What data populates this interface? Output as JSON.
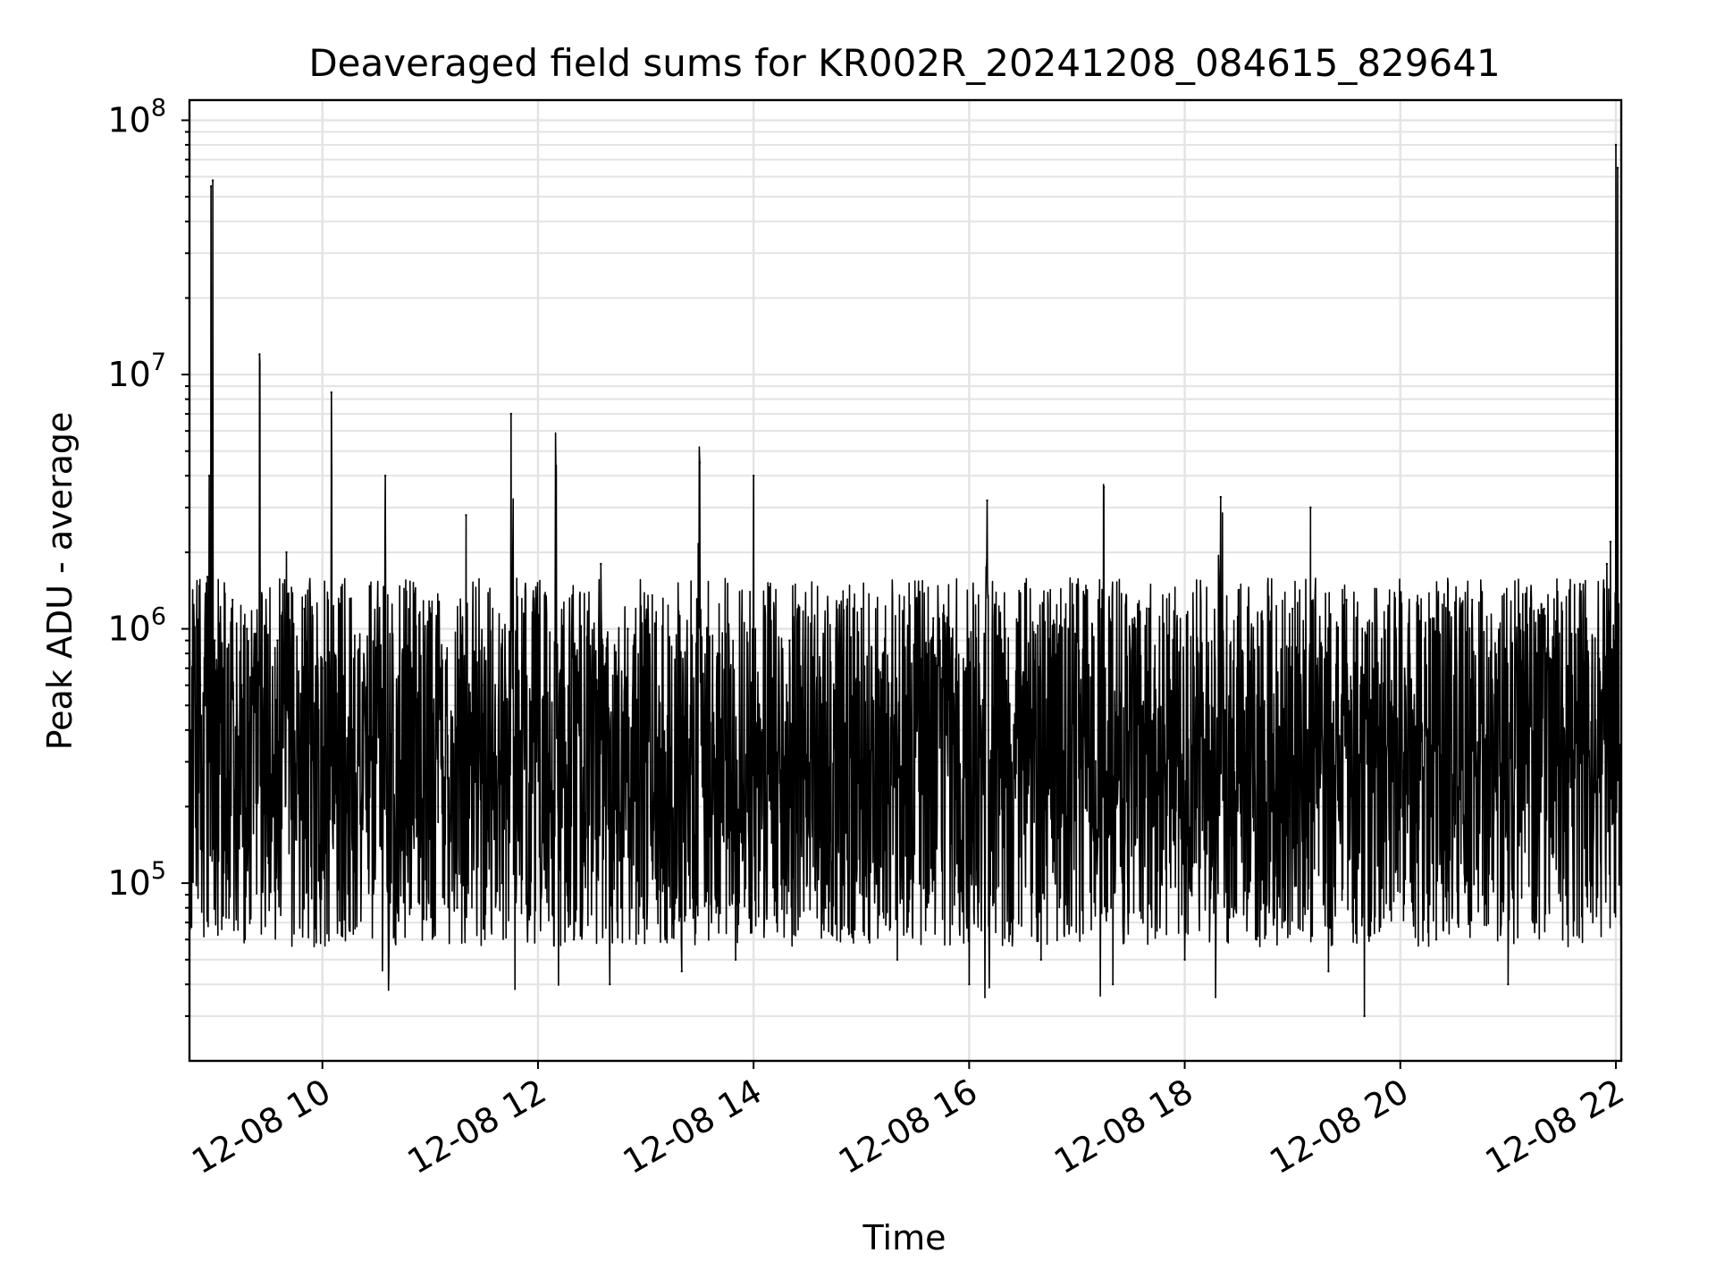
{
  "chart_data": {
    "type": "line",
    "title": "Deaveraged field sums for KR002R_20241208_084615_829641",
    "xlabel": "Time",
    "ylabel": "Peak ADU - average",
    "y_scale": "log",
    "ylim": [
      20000,
      120000000
    ],
    "xlim": [
      "2024-12-08 08:46",
      "2024-12-08 22:03"
    ],
    "grid": true,
    "legend": "none",
    "x_ticks": [
      {
        "value": "2024-12-08 10:00",
        "label": "12-08 10"
      },
      {
        "value": "2024-12-08 12:00",
        "label": "12-08 12"
      },
      {
        "value": "2024-12-08 14:00",
        "label": "12-08 14"
      },
      {
        "value": "2024-12-08 16:00",
        "label": "12-08 16"
      },
      {
        "value": "2024-12-08 18:00",
        "label": "12-08 18"
      },
      {
        "value": "2024-12-08 20:00",
        "label": "12-08 20"
      },
      {
        "value": "2024-12-08 22:00",
        "label": "12-08 22"
      }
    ],
    "y_ticks": [
      {
        "value": 100000,
        "base": "10",
        "exponent": "5"
      },
      {
        "value": 1000000,
        "base": "10",
        "exponent": "6"
      },
      {
        "value": 10000000,
        "base": "10",
        "exponent": "7"
      },
      {
        "value": 100000000,
        "base": "10",
        "exponent": "8"
      }
    ],
    "series_style": {
      "color": "#000000"
    },
    "series": [
      {
        "x": [
          "2024-12-08 08:46",
          "2024-12-08 08:52",
          "2024-12-08 08:55",
          "2024-12-08 08:56",
          "2024-12-08 08:57",
          "2024-12-08 08:58",
          "2024-12-08 08:59",
          "2024-12-08 09:00",
          "2024-12-08 09:05",
          "2024-12-08 09:10",
          "2024-12-08 09:15",
          "2024-12-08 09:18",
          "2024-12-08 09:20",
          "2024-12-08 09:25",
          "2024-12-08 09:30",
          "2024-12-08 09:35",
          "2024-12-08 09:40",
          "2024-12-08 09:50",
          "2024-12-08 10:00",
          "2024-12-08 10:05",
          "2024-12-08 10:10",
          "2024-12-08 10:20",
          "2024-12-08 10:35",
          "2024-12-08 10:50",
          "2024-12-08 11:00",
          "2024-12-08 11:15",
          "2024-12-08 11:20",
          "2024-12-08 11:30",
          "2024-12-08 11:40",
          "2024-12-08 11:45",
          "2024-12-08 12:00",
          "2024-12-08 12:10",
          "2024-12-08 12:20",
          "2024-12-08 12:35",
          "2024-12-08 12:40",
          "2024-12-08 12:50",
          "2024-12-08 13:00",
          "2024-12-08 13:20",
          "2024-12-08 13:30",
          "2024-12-08 13:40",
          "2024-12-08 13:50",
          "2024-12-08 14:00",
          "2024-12-08 14:05",
          "2024-12-08 14:20",
          "2024-12-08 14:40",
          "2024-12-08 15:00",
          "2024-12-08 15:20",
          "2024-12-08 15:40",
          "2024-12-08 16:00",
          "2024-12-08 16:10",
          "2024-12-08 16:20",
          "2024-12-08 16:40",
          "2024-12-08 17:00",
          "2024-12-08 17:15",
          "2024-12-08 17:20",
          "2024-12-08 17:40",
          "2024-12-08 18:00",
          "2024-12-08 18:20",
          "2024-12-08 18:40",
          "2024-12-08 19:00",
          "2024-12-08 19:10",
          "2024-12-08 19:20",
          "2024-12-08 19:30",
          "2024-12-08 19:40",
          "2024-12-08 20:00",
          "2024-12-08 20:20",
          "2024-12-08 20:40",
          "2024-12-08 21:00",
          "2024-12-08 21:20",
          "2024-12-08 21:35",
          "2024-12-08 21:40",
          "2024-12-08 21:50",
          "2024-12-08 21:55",
          "2024-12-08 21:57",
          "2024-12-08 21:59",
          "2024-12-08 22:00",
          "2024-12-08 22:01",
          "2024-12-08 22:02",
          "2024-12-08 22:03"
        ],
        "y": [
          700000,
          600000,
          500000,
          1600000,
          4000000,
          55000000,
          58000000,
          900000,
          700000,
          1300000,
          600000,
          1000000,
          200000,
          12000000,
          120000,
          900000,
          2000000,
          1200000,
          700000,
          8500000,
          900000,
          600000,
          4000000,
          700000,
          1000000,
          80000,
          2800000,
          600000,
          100000,
          7000000,
          500000,
          4000000,
          60000,
          1800000,
          40000,
          1000000,
          300000,
          45000,
          4500000,
          800000,
          50000,
          4000000,
          400000,
          900000,
          80000,
          1200000,
          50000,
          1100000,
          40000,
          3200000,
          1000000,
          50000,
          1300000,
          3600000,
          40000,
          1200000,
          50000,
          3300000,
          60000,
          1200000,
          3000000,
          45000,
          1300000,
          30000,
          1200000,
          60000,
          1300000,
          40000,
          1200000,
          700000,
          1500000,
          800000,
          1800000,
          2200000,
          900000,
          80000000,
          65000000,
          350000,
          800000
        ]
      }
    ]
  }
}
